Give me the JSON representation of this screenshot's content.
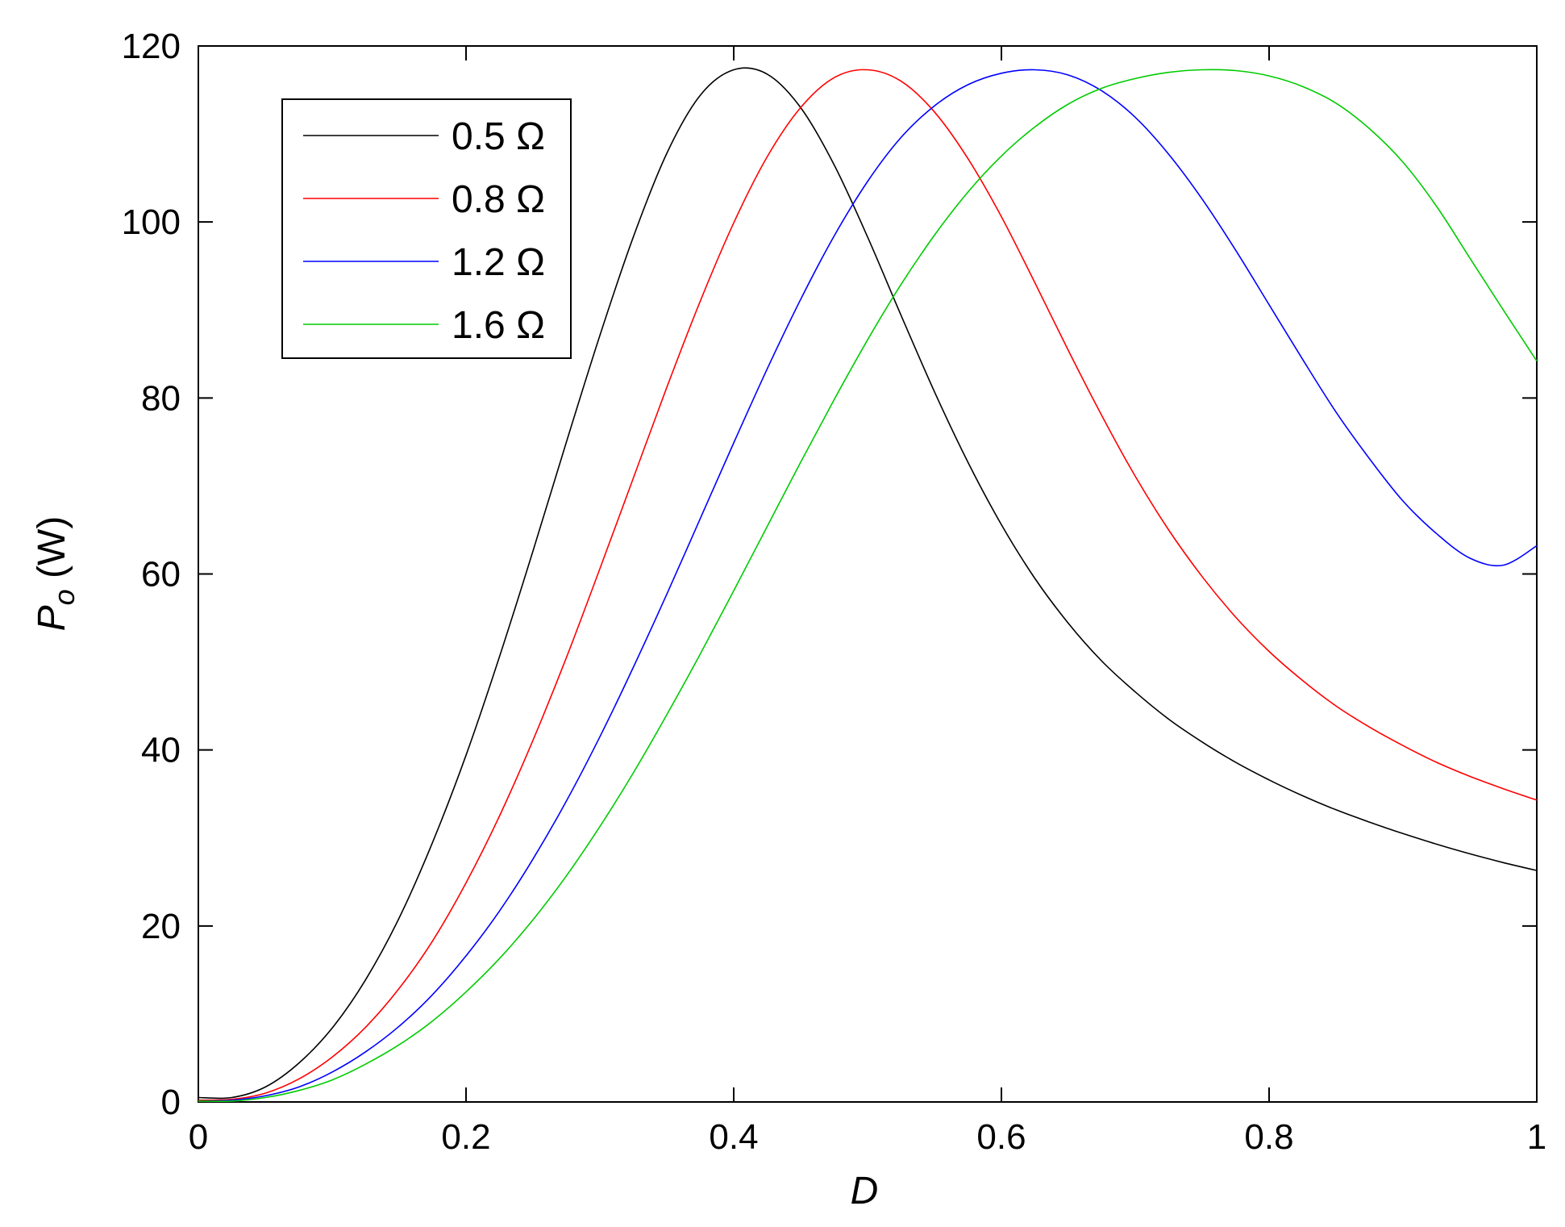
{
  "chart_data": {
    "type": "line",
    "xlabel": "D",
    "ylabel_main": "P",
    "ylabel_sub": "o",
    "ylabel_unit": " (W)",
    "xlim": [
      0,
      1
    ],
    "ylim": [
      0,
      120
    ],
    "xticks": [
      0,
      0.2,
      0.4,
      0.6,
      0.8,
      1
    ],
    "xtick_labels": [
      "0",
      "0.2",
      "0.4",
      "0.6",
      "0.8",
      "1"
    ],
    "yticks": [
      0,
      20,
      40,
      60,
      80,
      100,
      120
    ],
    "ytick_labels": [
      "0",
      "20",
      "40",
      "60",
      "80",
      "100",
      "120"
    ],
    "grid": false,
    "legend_position": "top-left",
    "x": [
      0,
      0.025,
      0.05,
      0.075,
      0.1,
      0.125,
      0.15,
      0.175,
      0.2,
      0.225,
      0.25,
      0.275,
      0.3,
      0.325,
      0.35,
      0.375,
      0.4,
      0.425,
      0.45,
      0.475,
      0.5,
      0.525,
      0.55,
      0.575,
      0.6,
      0.625,
      0.65,
      0.675,
      0.7,
      0.725,
      0.75,
      0.775,
      0.8,
      0.825,
      0.85,
      0.875,
      0.9,
      0.925,
      0.95,
      0.975,
      1
    ],
    "series": [
      {
        "name": "0.5 Ω",
        "color": "#000000",
        "values": [
          0.5,
          0.5,
          1.7,
          4.4,
          8.4,
          13.9,
          20.9,
          29.5,
          39.4,
          50.6,
          62.6,
          75.0,
          87.1,
          98.3,
          107.8,
          114.4,
          117.3,
          116.8,
          113.0,
          106.5,
          98.3,
          89.4,
          80.7,
          72.7,
          65.6,
          59.5,
          54.4,
          50.1,
          46.6,
          43.5,
          40.9,
          38.6,
          36.6,
          34.8,
          33.2,
          31.8,
          30.5,
          29.3,
          28.2,
          27.2,
          26.3
        ]
      },
      {
        "name": "0.8 Ω",
        "color": "#ff0000",
        "values": [
          0.2,
          0.3,
          1.0,
          2.6,
          5.1,
          8.5,
          12.9,
          18.3,
          24.9,
          32.5,
          41.1,
          50.5,
          60.6,
          70.9,
          81.2,
          91.0,
          99.9,
          107.4,
          113.0,
          116.4,
          117.3,
          116.0,
          112.5,
          107.2,
          100.6,
          93.1,
          85.4,
          78.0,
          71.1,
          65.0,
          59.7,
          55.1,
          51.2,
          47.9,
          45.0,
          42.6,
          40.5,
          38.6,
          37.0,
          35.6,
          34.3
        ]
      },
      {
        "name": "1.2 Ω",
        "color": "#0000ff",
        "values": [
          0.1,
          0.2,
          0.7,
          1.7,
          3.4,
          5.7,
          8.6,
          12.2,
          16.6,
          21.7,
          27.6,
          34.2,
          41.5,
          49.4,
          57.7,
          66.3,
          74.9,
          83.3,
          91.2,
          98.4,
          104.6,
          109.6,
          113.2,
          115.6,
          116.9,
          117.3,
          116.7,
          114.9,
          111.9,
          107.7,
          102.6,
          96.8,
          90.6,
          84.4,
          78.4,
          73.1,
          68.3,
          64.6,
          61.8,
          61.0,
          63.2
        ]
      },
      {
        "name": "1.6 Ω",
        "color": "#00cc00",
        "values": [
          0.1,
          0.1,
          0.5,
          1.3,
          2.5,
          4.3,
          6.5,
          9.2,
          12.5,
          16.3,
          20.7,
          25.7,
          31.3,
          37.4,
          44.0,
          50.9,
          58.1,
          65.4,
          72.7,
          79.8,
          86.6,
          92.9,
          98.5,
          103.4,
          107.5,
          110.8,
          113.4,
          115.2,
          116.3,
          117.0,
          117.3,
          117.2,
          116.6,
          115.4,
          113.5,
          110.6,
          106.8,
          101.8,
          95.9,
          90.0,
          84.2
        ]
      }
    ]
  }
}
